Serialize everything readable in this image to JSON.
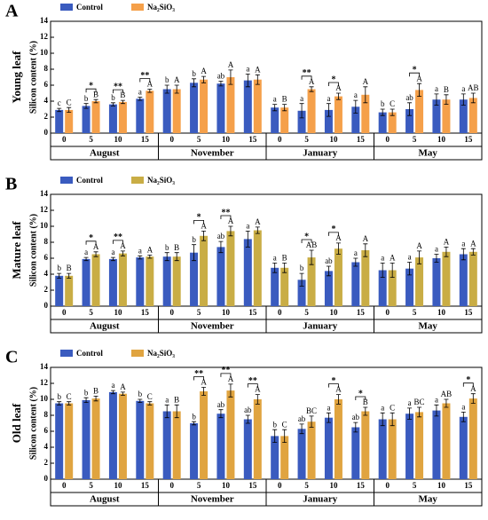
{
  "chart_data": [
    {
      "type": "bar",
      "panel": "A",
      "side_label": "Young leaf",
      "ylabel": "Silicon content (%)",
      "groups": [
        "August",
        "November",
        "January",
        "May"
      ],
      "categories": [
        "0",
        "5",
        "10",
        "15",
        "0",
        "5",
        "10",
        "15",
        "0",
        "5",
        "10",
        "15",
        "0",
        "5",
        "10",
        "15"
      ],
      "ylim": [
        0,
        14
      ],
      "yticks": [
        0,
        2,
        4,
        6,
        8,
        10,
        12,
        14
      ],
      "series": [
        {
          "name": "Control",
          "color": "#3a5bbf",
          "values": [
            2.9,
            3.4,
            3.6,
            4.3,
            5.5,
            6.3,
            6.2,
            6.6,
            3.2,
            2.8,
            2.9,
            3.3,
            2.6,
            3.0,
            4.2,
            4.2
          ],
          "errors": [
            0.2,
            0.3,
            0.2,
            0.2,
            0.5,
            0.5,
            0.3,
            0.8,
            0.4,
            0.9,
            0.8,
            0.8,
            0.4,
            0.8,
            0.7,
            0.7
          ],
          "letters": [
            "c",
            "b",
            "b",
            "a",
            "b",
            "b",
            "ab",
            "a",
            "a",
            "a",
            "a",
            "a",
            "b",
            "ab",
            "a",
            "a"
          ]
        },
        {
          "name": "Na₂SiO₃",
          "color": "#f5a04a",
          "values": [
            2.9,
            4.0,
            3.9,
            5.3,
            5.5,
            6.7,
            7.0,
            6.7,
            3.2,
            5.5,
            4.6,
            4.8,
            2.6,
            5.4,
            4.2,
            4.4
          ],
          "errors": [
            0.3,
            0.2,
            0.2,
            0.2,
            0.5,
            0.4,
            0.9,
            0.6,
            0.4,
            0.3,
            0.4,
            1.0,
            0.4,
            0.8,
            0.6,
            0.6
          ],
          "letters": [
            "C",
            "B",
            "B",
            "A",
            "A",
            "A",
            "A",
            "A",
            "B",
            "A",
            "A",
            "A",
            "C",
            "A",
            "B",
            "AB"
          ]
        }
      ],
      "significance": [
        null,
        "*",
        "**",
        "**",
        null,
        null,
        null,
        null,
        null,
        "**",
        "*",
        null,
        null,
        "*",
        null,
        null
      ]
    },
    {
      "type": "bar",
      "panel": "B",
      "side_label": "Mature leaf",
      "ylabel": "Silicon content (%)",
      "groups": [
        "August",
        "November",
        "January",
        "May"
      ],
      "categories": [
        "0",
        "5",
        "10",
        "15",
        "0",
        "5",
        "10",
        "15",
        "0",
        "5",
        "10",
        "15",
        "0",
        "5",
        "10",
        "15"
      ],
      "ylim": [
        0,
        14
      ],
      "yticks": [
        0,
        2,
        4,
        6,
        8,
        10,
        12,
        14
      ],
      "series": [
        {
          "name": "Control",
          "color": "#3a5bbf",
          "values": [
            3.8,
            5.9,
            5.9,
            6.1,
            6.2,
            6.7,
            7.4,
            8.4,
            4.8,
            3.3,
            4.4,
            5.5,
            4.5,
            4.7,
            6.0,
            6.5
          ],
          "errors": [
            0.3,
            0.2,
            0.2,
            0.2,
            0.5,
            1.0,
            0.7,
            1.0,
            0.6,
            0.8,
            0.6,
            0.5,
            0.9,
            0.8,
            0.5,
            0.7
          ],
          "letters": [
            "b",
            "a",
            "a",
            "a",
            "b",
            "b",
            "ab",
            "a",
            "a",
            "b",
            "ab",
            "a",
            "a",
            "a",
            "a",
            "a"
          ]
        },
        {
          "name": "Na₂SiO₃",
          "color": "#c9ad45",
          "values": [
            3.8,
            6.5,
            6.6,
            6.2,
            6.2,
            8.8,
            9.4,
            9.5,
            4.8,
            6.1,
            7.2,
            7.0,
            4.5,
            6.1,
            6.8,
            6.8
          ],
          "errors": [
            0.3,
            0.3,
            0.3,
            0.2,
            0.5,
            0.6,
            0.6,
            0.4,
            0.6,
            0.9,
            0.7,
            0.8,
            0.9,
            0.8,
            0.6,
            0.4
          ],
          "letters": [
            "B",
            "A",
            "A",
            "A",
            "B",
            "A",
            "A",
            "A",
            "B",
            "AB",
            "A",
            "A",
            "A",
            "A",
            "A",
            "A"
          ]
        }
      ],
      "significance": [
        null,
        "*",
        "**",
        null,
        null,
        "*",
        "**",
        null,
        null,
        "*",
        "*",
        null,
        null,
        null,
        null,
        null
      ]
    },
    {
      "type": "bar",
      "panel": "C",
      "side_label": "Old leaf",
      "ylabel": "Silicon content (%)",
      "groups": [
        "August",
        "November",
        "January",
        "May"
      ],
      "categories": [
        "0",
        "5",
        "10",
        "15",
        "0",
        "5",
        "10",
        "15",
        "0",
        "5",
        "10",
        "15",
        "0",
        "5",
        "10",
        "15"
      ],
      "ylim": [
        0,
        14
      ],
      "yticks": [
        0,
        2,
        4,
        6,
        8,
        10,
        12,
        14
      ],
      "series": [
        {
          "name": "Control",
          "color": "#3a5bbf",
          "values": [
            9.5,
            9.9,
            10.9,
            9.8,
            8.5,
            7.0,
            8.2,
            7.5,
            5.4,
            6.3,
            7.7,
            6.5,
            7.5,
            8.2,
            8.6,
            7.8
          ],
          "errors": [
            0.2,
            0.3,
            0.2,
            0.2,
            0.8,
            0.2,
            0.5,
            0.5,
            0.8,
            0.6,
            0.6,
            0.6,
            0.8,
            0.7,
            0.7,
            0.6
          ],
          "letters": [
            "b",
            "b",
            "a",
            "b",
            "a",
            "b",
            "ab",
            "ab",
            "b",
            "ab",
            "a",
            "ab",
            "a",
            "a",
            "a",
            "a"
          ]
        },
        {
          "name": "Na₂SiO₃",
          "color": "#e0a440",
          "values": [
            9.5,
            10.1,
            10.7,
            9.5,
            8.5,
            11.0,
            11.1,
            10.0,
            5.4,
            7.2,
            10.0,
            8.5,
            7.5,
            8.4,
            9.5,
            10.1
          ],
          "errors": [
            0.2,
            0.3,
            0.2,
            0.2,
            0.8,
            0.5,
            0.8,
            0.6,
            0.8,
            0.7,
            0.6,
            0.5,
            0.8,
            0.6,
            0.5,
            0.6
          ],
          "letters": [
            "C",
            "B",
            "A",
            "C",
            "B",
            "A",
            "A",
            "A",
            "C",
            "BC",
            "A",
            "B",
            "C",
            "BC",
            "AB",
            "A"
          ]
        }
      ],
      "significance": [
        null,
        null,
        null,
        null,
        null,
        "**",
        "**",
        "**",
        null,
        null,
        "*",
        "*",
        null,
        null,
        null,
        "*"
      ]
    }
  ]
}
